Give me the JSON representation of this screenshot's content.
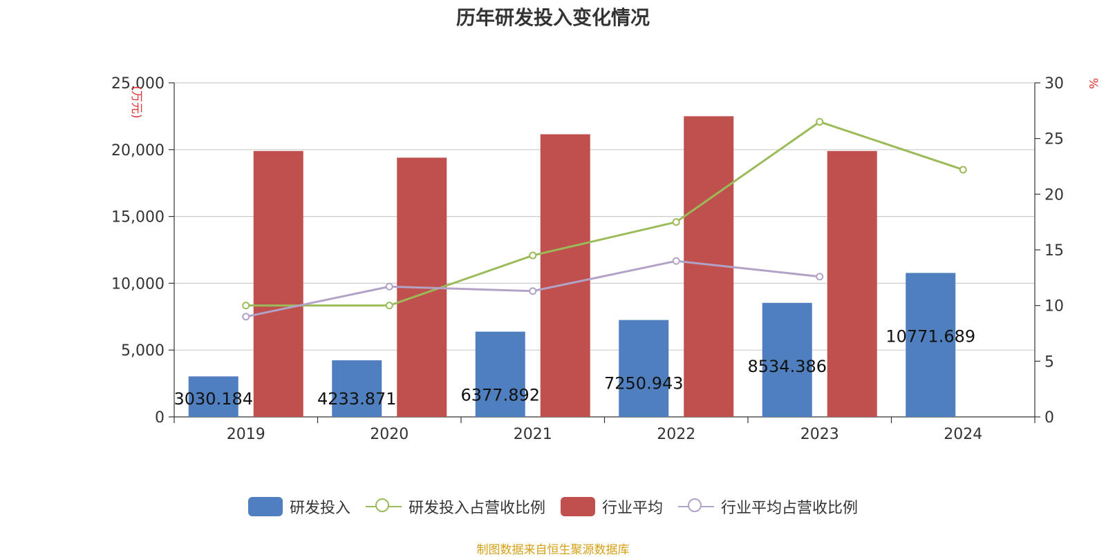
{
  "chart_data": {
    "type": "bar",
    "title": "历年研发投入变化情况",
    "categories": [
      "2019",
      "2020",
      "2021",
      "2022",
      "2023",
      "2024"
    ],
    "y_left": {
      "label": "(万元)",
      "range": [
        0,
        25000
      ],
      "ticks": [
        "0",
        "5,000",
        "10,000",
        "15,000",
        "20,000",
        "25,000"
      ]
    },
    "y_right": {
      "label": "%",
      "range": [
        0,
        30
      ],
      "ticks": [
        "0",
        "5",
        "10",
        "15",
        "20",
        "25",
        "30"
      ]
    },
    "series": [
      {
        "name": "研发投入",
        "type": "bar",
        "axis": "left",
        "color": "#4f7fbf",
        "values": [
          3030.184,
          4233.871,
          6377.892,
          7250.943,
          8534.386,
          10771.689
        ],
        "labels": [
          "3030.184",
          "4233.871",
          "6377.892",
          "7250.943",
          "8534.386",
          "10771.689"
        ]
      },
      {
        "name": "研发投入占营收比例",
        "type": "line",
        "axis": "right",
        "color": "#9bbb59",
        "values": [
          10.0,
          10.0,
          14.5,
          17.5,
          26.5,
          22.2
        ]
      },
      {
        "name": "行业平均",
        "type": "bar",
        "axis": "left",
        "color": "#c0504d",
        "values": [
          19900,
          19400,
          21150,
          22500,
          19900,
          null
        ]
      },
      {
        "name": "行业平均占营收比例",
        "type": "line",
        "axis": "right",
        "color": "#b3a2c7",
        "values": [
          9.0,
          11.7,
          11.3,
          14.0,
          12.6,
          null
        ]
      }
    ],
    "grid": true,
    "legend_position": "bottom"
  },
  "legend": [
    {
      "label": "研发投入",
      "kind": "bar",
      "color": "#4f7fbf"
    },
    {
      "label": "研发投入占营收比例",
      "kind": "line",
      "color": "#9bbb59"
    },
    {
      "label": "行业平均",
      "kind": "bar",
      "color": "#c0504d"
    },
    {
      "label": "行业平均占营收比例",
      "kind": "line",
      "color": "#b3a2c7"
    }
  ],
  "source": "制图数据来自恒生聚源数据库"
}
